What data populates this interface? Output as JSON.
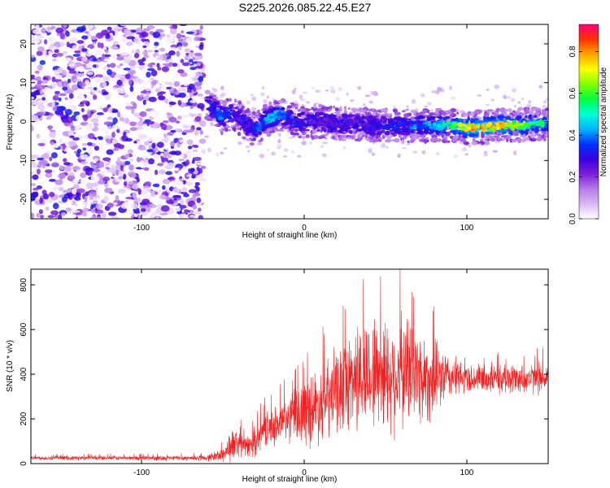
{
  "title": "S225.2026.085.22.45.E27",
  "chart_data": [
    {
      "type": "heatmap",
      "xlabel": "Height of straight line (km)",
      "ylabel": "Frequency (Hz)",
      "xlim": [
        -168,
        150
      ],
      "ylim": [
        -25,
        25
      ],
      "xticks": [
        -100,
        0,
        100
      ],
      "yticks": [
        -20,
        -10,
        0,
        10,
        20
      ],
      "colorbar": {
        "label": "Normalized spectral amplitude",
        "range": [
          0.0,
          0.93
        ],
        "ticks": [
          0.0,
          0.2,
          0.4,
          0.6,
          0.8
        ],
        "tick_labels": [
          "0.0",
          "0.2",
          "0.4",
          "0.6",
          "0.8"
        ],
        "colors": [
          "#ffffff",
          "#d9b8f5",
          "#b57be8",
          "#7a1fd6",
          "#3a00e0",
          "#0033ff",
          "#00b4ff",
          "#00ffd9",
          "#00ff40",
          "#80ff00",
          "#ffff00",
          "#ffa500",
          "#ff3300",
          "#ff0077"
        ]
      },
      "noise_region_x": [
        -168,
        -62
      ],
      "signal_trace": {
        "x": [
          -60,
          -55,
          -50,
          -45,
          -40,
          -35,
          -30,
          -25,
          -20,
          -15,
          -10,
          -5,
          0,
          10,
          20,
          30,
          40,
          50,
          60,
          70,
          80,
          90,
          100,
          110,
          120,
          130,
          140,
          150
        ],
        "freq": [
          5,
          3,
          1,
          2,
          1,
          -1,
          -2,
          0,
          1,
          2,
          1,
          0,
          0,
          0,
          -0.5,
          -0.5,
          -1,
          -1,
          -1,
          -1,
          -1,
          -1,
          -1.5,
          -1.5,
          -1,
          -1,
          -0.5,
          -0.5
        ],
        "amplitude": [
          0.3,
          0.35,
          0.4,
          0.35,
          0.3,
          0.3,
          0.35,
          0.4,
          0.5,
          0.45,
          0.35,
          0.35,
          0.3,
          0.3,
          0.3,
          0.3,
          0.3,
          0.3,
          0.35,
          0.4,
          0.5,
          0.6,
          0.75,
          0.8,
          0.85,
          0.7,
          0.6,
          0.5
        ]
      }
    },
    {
      "type": "line",
      "xlabel": "Height of straight line (km)",
      "ylabel": "SNR (10 * v/v)",
      "xlim": [
        -168,
        150
      ],
      "ylim": [
        0,
        870
      ],
      "xticks": [
        -100,
        0,
        100
      ],
      "yticks": [
        0,
        200,
        400,
        600,
        800
      ],
      "series": [
        {
          "name": "SNR",
          "color": "#ee2222",
          "envelope": {
            "x": [
              -168,
              -110,
              -60,
              -50,
              -45,
              -40,
              -35,
              -30,
              -25,
              -20,
              -15,
              -10,
              -5,
              0,
              5,
              10,
              15,
              20,
              25,
              30,
              35,
              40,
              45,
              50,
              55,
              60,
              65,
              70,
              75,
              80,
              85,
              90,
              100,
              110,
              120,
              130,
              140,
              150
            ],
            "mid": [
              25,
              25,
              25,
              40,
              80,
              90,
              70,
              100,
              150,
              160,
              180,
              200,
              220,
              230,
              250,
              270,
              290,
              320,
              360,
              380,
              390,
              400,
              420,
              410,
              390,
              400,
              420,
              400,
              380,
              380,
              390,
              390,
              380,
              380,
              380,
              380,
              380,
              390
            ],
            "amp": [
              10,
              12,
              15,
              40,
              90,
              70,
              60,
              80,
              90,
              90,
              120,
              130,
              150,
              180,
              200,
              200,
              220,
              220,
              250,
              280,
              300,
              300,
              320,
              300,
              300,
              300,
              300,
              260,
              250,
              200,
              150,
              110,
              80,
              80,
              80,
              80,
              80,
              90
            ]
          }
        }
      ]
    }
  ]
}
